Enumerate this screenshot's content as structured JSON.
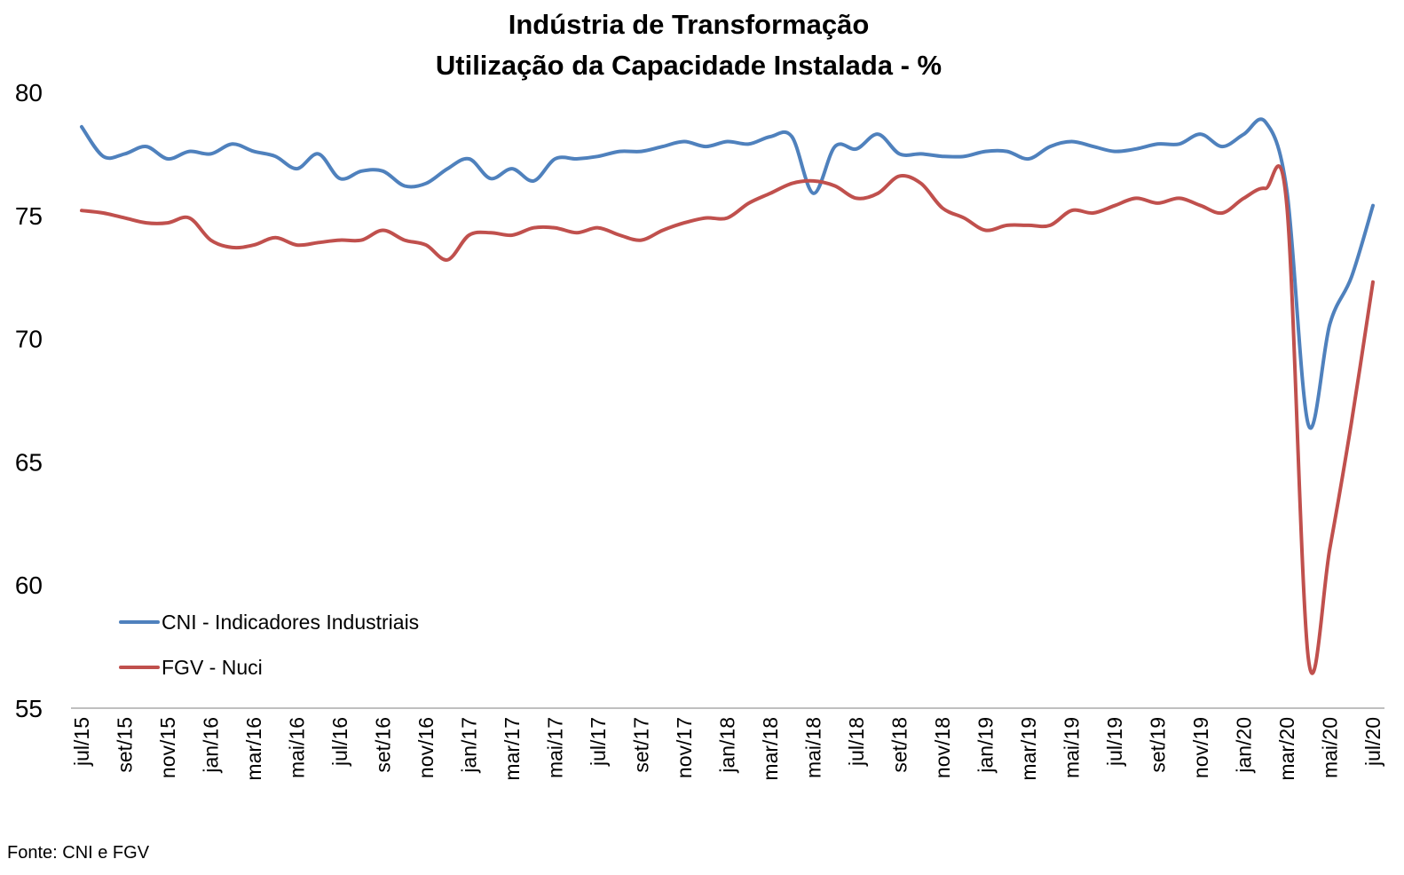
{
  "chart_data": {
    "type": "line",
    "title": "Indústria de Transformação",
    "subtitle": "Utilização da Capacidade Instalada - %",
    "ylim": [
      55,
      80
    ],
    "yticks": [
      55,
      60,
      65,
      70,
      75,
      80
    ],
    "grid": false,
    "legend_position": "bottom-left",
    "x": [
      "jul/15",
      "ago/15",
      "set/15",
      "out/15",
      "nov/15",
      "dez/15",
      "jan/16",
      "fev/16",
      "mar/16",
      "abr/16",
      "mai/16",
      "jun/16",
      "jul/16",
      "ago/16",
      "set/16",
      "out/16",
      "nov/16",
      "dez/16",
      "jan/17",
      "fev/17",
      "mar/17",
      "abr/17",
      "mai/17",
      "jun/17",
      "jul/17",
      "ago/17",
      "set/17",
      "out/17",
      "nov/17",
      "dez/17",
      "jan/18",
      "fev/18",
      "mar/18",
      "abr/18",
      "mai/18",
      "jun/18",
      "jul/18",
      "ago/18",
      "set/18",
      "out/18",
      "nov/18",
      "dez/18",
      "jan/19",
      "fev/19",
      "mar/19",
      "abr/19",
      "mai/19",
      "jun/19",
      "jul/19",
      "ago/19",
      "set/19",
      "out/19",
      "nov/19",
      "dez/19",
      "jan/20",
      "fev/20",
      "mar/20",
      "abr/20",
      "mai/20",
      "jun/20",
      "jul/20"
    ],
    "x_tick_labels": [
      "jul/15",
      "set/15",
      "nov/15",
      "jan/16",
      "mar/16",
      "mai/16",
      "jul/16",
      "set/16",
      "nov/16",
      "jan/17",
      "mar/17",
      "mai/17",
      "jul/17",
      "set/17",
      "nov/17",
      "jan/18",
      "mar/18",
      "mai/18",
      "jul/18",
      "set/18",
      "nov/18",
      "jan/19",
      "mar/19",
      "mai/19",
      "jul/19",
      "set/19",
      "nov/19",
      "jan/20",
      "mar/20",
      "mai/20",
      "jul/20"
    ],
    "series": [
      {
        "name": "CNI - Indicadores Industriais",
        "color": "#4F81BD",
        "values": [
          78.6,
          77.4,
          77.5,
          77.8,
          77.3,
          77.6,
          77.5,
          77.9,
          77.6,
          77.4,
          76.9,
          77.5,
          76.5,
          76.8,
          76.8,
          76.2,
          76.3,
          76.9,
          77.3,
          76.5,
          76.9,
          76.4,
          77.3,
          77.3,
          77.4,
          77.6,
          77.6,
          77.8,
          78.0,
          77.8,
          78.0,
          77.9,
          78.2,
          78.2,
          75.9,
          77.8,
          77.7,
          78.3,
          77.5,
          77.5,
          77.4,
          77.4,
          77.6,
          77.6,
          77.3,
          77.8,
          78.0,
          77.8,
          77.6,
          77.7,
          77.9,
          77.9,
          78.3,
          77.8,
          78.3,
          78.8,
          76.0,
          66.5,
          70.6,
          72.5,
          75.4
        ]
      },
      {
        "name": "FGV - Nuci",
        "color": "#C0504D",
        "values": [
          75.2,
          75.1,
          74.9,
          74.7,
          74.7,
          74.9,
          74.0,
          73.7,
          73.8,
          74.1,
          73.8,
          73.9,
          74.0,
          74.0,
          74.4,
          74.0,
          73.8,
          73.2,
          74.2,
          74.3,
          74.2,
          74.5,
          74.5,
          74.3,
          74.5,
          74.2,
          74.0,
          74.4,
          74.7,
          74.9,
          74.9,
          75.5,
          75.9,
          76.3,
          76.4,
          76.2,
          75.7,
          75.9,
          76.6,
          76.3,
          75.3,
          74.9,
          74.4,
          74.6,
          74.6,
          74.6,
          75.2,
          75.1,
          75.4,
          75.7,
          75.5,
          75.7,
          75.4,
          75.1,
          75.7,
          76.1,
          75.4,
          57.0,
          61.5,
          66.6,
          72.3
        ]
      }
    ],
    "source": "Fonte: CNI e FGV"
  }
}
